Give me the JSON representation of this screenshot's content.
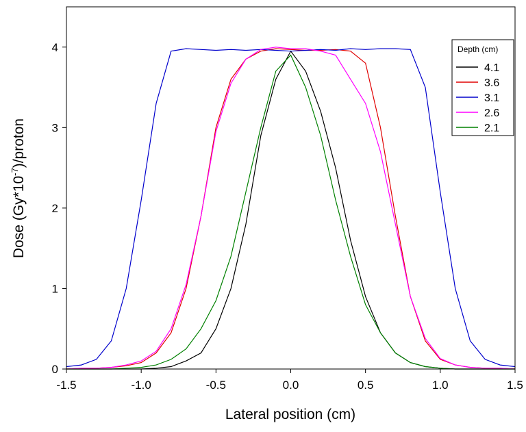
{
  "chart_data": {
    "type": "line",
    "xlabel": "Lateral position (cm)",
    "ylabel": {
      "text": "Dose (Gy*10",
      "superscript": "-7",
      "suffix": ")/proton"
    },
    "legend_title": "Depth (cm)",
    "legend_position": "upper right",
    "x": [
      -1.5,
      -1.4,
      -1.3,
      -1.2,
      -1.1,
      -1.0,
      -0.9,
      -0.8,
      -0.7,
      -0.6,
      -0.5,
      -0.4,
      -0.3,
      -0.2,
      -0.1,
      0.0,
      0.1,
      0.2,
      0.3,
      0.4,
      0.5,
      0.6,
      0.7,
      0.8,
      0.9,
      1.0,
      1.1,
      1.2,
      1.3,
      1.4,
      1.5
    ],
    "series": [
      {
        "name": "4.1",
        "color": "#000000",
        "values": [
          0,
          0,
          0,
          0,
          0,
          0,
          0.01,
          0.03,
          0.1,
          0.2,
          0.5,
          1.0,
          1.8,
          2.9,
          3.6,
          3.95,
          3.7,
          3.2,
          2.5,
          1.6,
          0.9,
          0.45,
          0.2,
          0.08,
          0.03,
          0.01,
          0,
          0,
          0,
          0,
          0
        ]
      },
      {
        "name": "3.6",
        "color": "#e00000",
        "values": [
          0,
          0.01,
          0.01,
          0.02,
          0.04,
          0.08,
          0.2,
          0.45,
          1.0,
          1.9,
          3.0,
          3.6,
          3.85,
          3.95,
          3.98,
          3.97,
          3.96,
          3.96,
          3.97,
          3.95,
          3.8,
          3.0,
          1.9,
          0.9,
          0.35,
          0.12,
          0.05,
          0.02,
          0.01,
          0.01,
          0
        ]
      },
      {
        "name": "3.1",
        "color": "#0000cc",
        "values": [
          0.03,
          0.05,
          0.12,
          0.35,
          1.0,
          2.1,
          3.3,
          3.95,
          3.98,
          3.97,
          3.96,
          3.97,
          3.96,
          3.97,
          3.96,
          3.95,
          3.96,
          3.97,
          3.96,
          3.98,
          3.97,
          3.98,
          3.98,
          3.97,
          3.5,
          2.2,
          1.0,
          0.35,
          0.12,
          0.05,
          0.03
        ]
      },
      {
        "name": "2.6",
        "color": "#ff00ff",
        "values": [
          0,
          0.01,
          0.01,
          0.02,
          0.05,
          0.1,
          0.22,
          0.5,
          1.05,
          1.9,
          2.95,
          3.55,
          3.85,
          3.97,
          4.0,
          3.98,
          3.98,
          3.95,
          3.9,
          3.6,
          3.3,
          2.7,
          1.8,
          0.9,
          0.38,
          0.13,
          0.05,
          0.02,
          0.01,
          0.01,
          0
        ]
      },
      {
        "name": "2.1",
        "color": "#008000",
        "values": [
          0,
          0,
          0,
          0,
          0.01,
          0.02,
          0.05,
          0.12,
          0.25,
          0.5,
          0.85,
          1.4,
          2.2,
          3.0,
          3.7,
          3.9,
          3.5,
          2.9,
          2.1,
          1.4,
          0.8,
          0.45,
          0.2,
          0.08,
          0.03,
          0.01,
          0,
          0,
          0,
          0,
          0
        ]
      }
    ],
    "xlim": [
      -1.5,
      1.5
    ],
    "ylim": [
      0,
      4.5
    ],
    "xticks": [
      -1.5,
      {
        "value": -1.0,
        "label": "-1.0"
      },
      -0.5,
      {
        "value": 0,
        "label": "0.0"
      },
      0.5,
      {
        "value": 1.0,
        "label": "1.0"
      },
      1.5
    ],
    "yticks": [
      0,
      1,
      2,
      3,
      4
    ]
  }
}
